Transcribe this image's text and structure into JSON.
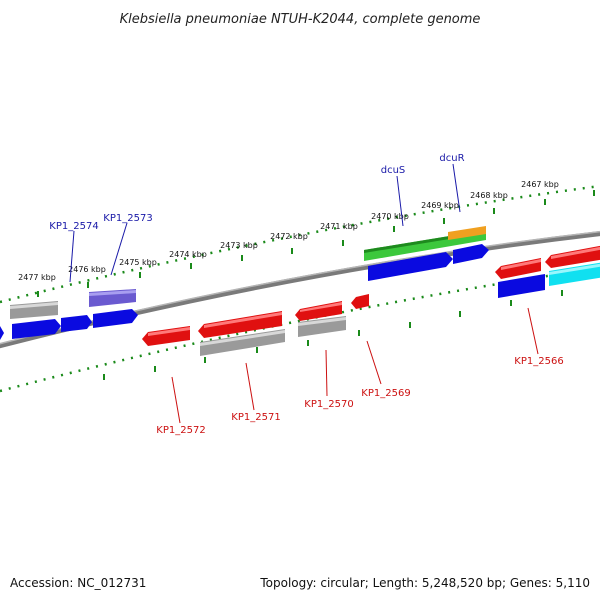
{
  "title": "Klebsiella pneumoniae NTUH-K2044, complete genome",
  "footer": {
    "accession": "Accession: NC_012731",
    "summary": "Topology: circular; Length: 5,248,520 bp; Genes: 5,110"
  },
  "scale_labels": [
    "2467 kbp",
    "2468 kbp",
    "2469 kbp",
    "2470 kbp",
    "2471 kbp",
    "2472 kbp",
    "2473 kbp",
    "2474 kbp",
    "2475 kbp",
    "2476 kbp",
    "2477 kbp"
  ],
  "gene_labels": {
    "dcuS": "dcuS",
    "dcuR": "dcuR",
    "KP1_2574": "KP1_2574",
    "KP1_2573": "KP1_2573",
    "KP1_2572": "KP1_2572",
    "KP1_2571": "KP1_2571",
    "KP1_2570": "KP1_2570",
    "KP1_2569": "KP1_2569",
    "KP1_2566": "KP1_2566"
  },
  "colors": {
    "forward_cds": "#0a0ae0",
    "reverse_cds": "#e01010",
    "gray_feature": "#9a9a9a",
    "green_feature": "#3cc83c",
    "orange_feature": "#f0a020",
    "cyan_feature": "#10e0f0",
    "purple_feature": "#6a5ad0",
    "scale_dots": "#1a8a1a",
    "backbone": "#808080"
  }
}
